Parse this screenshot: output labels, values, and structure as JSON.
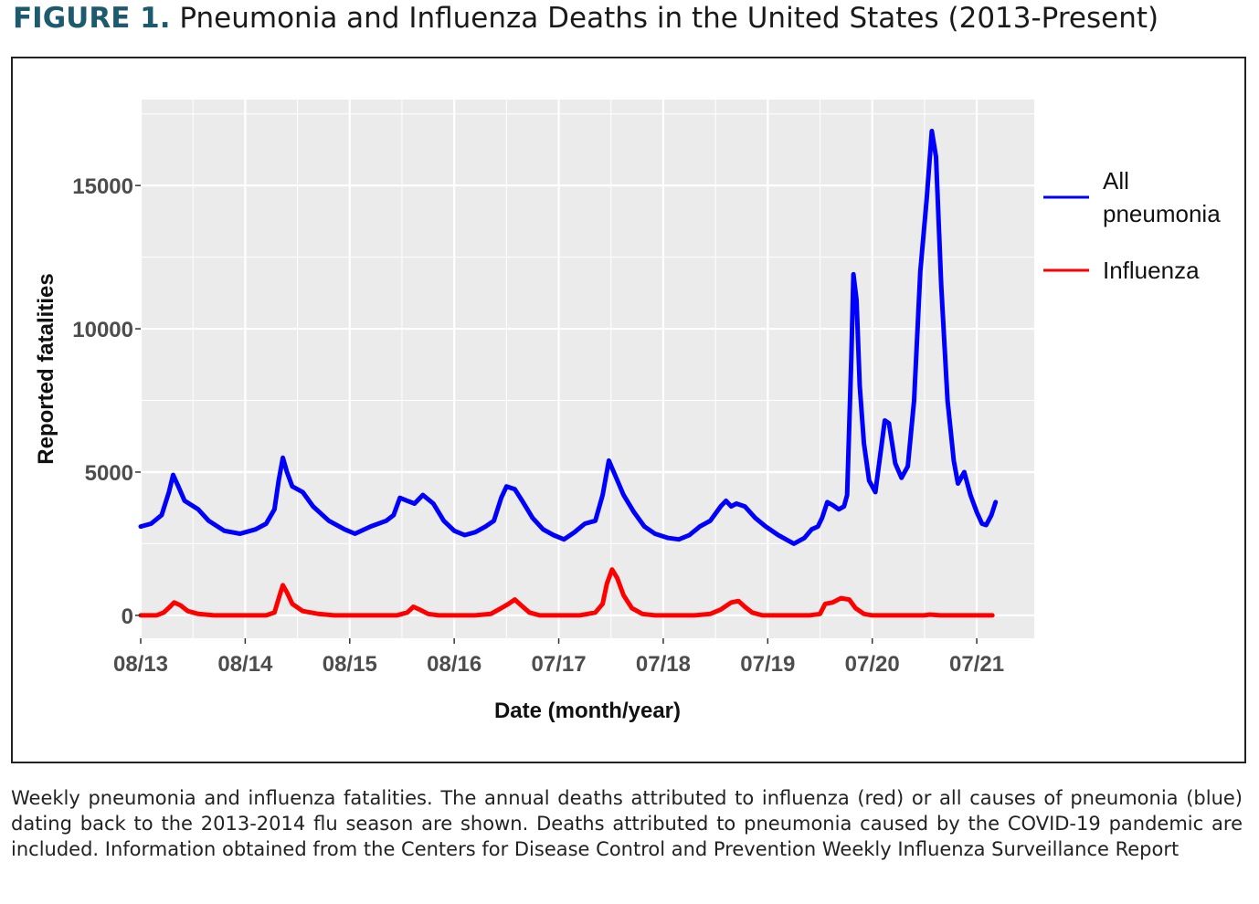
{
  "figure": {
    "label": "FIGURE 1.",
    "title": "Pneumonia and Influenza Deaths in the United States (2013-Present)",
    "caption": "Weekly pneumonia and influenza fatalities. The annual deaths attributed to influenza (red) or all causes of pneumonia (blue) dating back to the 2013-2014 flu season are shown. Deaths attributed to pneumonia caused by the COVID-19 pandemic are included. Information obtained from the Centers for Disease Control and Prevention Weekly Influenza Surveillance Report"
  },
  "colors": {
    "pneumonia": "#0000ff",
    "influenza": "#ff0000",
    "panel": "#ebebeb",
    "grid": "#ffffff",
    "title_label": "#1e5a6e"
  },
  "chart_data": {
    "type": "line",
    "xlabel": "Date (month/year)",
    "ylabel": "Reported fatalities",
    "xlim": [
      0,
      8.55
    ],
    "ylim": [
      -800,
      18000
    ],
    "x_ticks": [
      {
        "value": 0,
        "label": "08/13"
      },
      {
        "value": 1,
        "label": "08/14"
      },
      {
        "value": 2,
        "label": "08/15"
      },
      {
        "value": 3,
        "label": "08/16"
      },
      {
        "value": 4,
        "label": "07/17"
      },
      {
        "value": 5,
        "label": "07/18"
      },
      {
        "value": 6,
        "label": "07/19"
      },
      {
        "value": 7,
        "label": "07/20"
      },
      {
        "value": 8,
        "label": "07/21"
      }
    ],
    "y_ticks": [
      {
        "value": 0,
        "label": "0"
      },
      {
        "value": 5000,
        "label": "5000"
      },
      {
        "value": 10000,
        "label": "10000"
      },
      {
        "value": 15000,
        "label": "15000"
      }
    ],
    "legend": {
      "position": "right",
      "entries": [
        "All\npneumonia",
        "Influenza"
      ]
    },
    "series": [
      {
        "name": "All pneumonia",
        "color": "#0000ff",
        "points": [
          [
            0.0,
            3100
          ],
          [
            0.1,
            3200
          ],
          [
            0.2,
            3500
          ],
          [
            0.27,
            4300
          ],
          [
            0.31,
            4900
          ],
          [
            0.36,
            4500
          ],
          [
            0.42,
            4000
          ],
          [
            0.55,
            3700
          ],
          [
            0.65,
            3300
          ],
          [
            0.8,
            2950
          ],
          [
            0.95,
            2850
          ],
          [
            1.1,
            3000
          ],
          [
            1.2,
            3200
          ],
          [
            1.28,
            3700
          ],
          [
            1.32,
            4700
          ],
          [
            1.36,
            5500
          ],
          [
            1.4,
            5000
          ],
          [
            1.45,
            4500
          ],
          [
            1.55,
            4300
          ],
          [
            1.65,
            3800
          ],
          [
            1.8,
            3300
          ],
          [
            1.95,
            3000
          ],
          [
            2.05,
            2850
          ],
          [
            2.2,
            3100
          ],
          [
            2.35,
            3300
          ],
          [
            2.42,
            3500
          ],
          [
            2.48,
            4100
          ],
          [
            2.55,
            4000
          ],
          [
            2.62,
            3900
          ],
          [
            2.7,
            4200
          ],
          [
            2.8,
            3900
          ],
          [
            2.9,
            3300
          ],
          [
            3.0,
            2950
          ],
          [
            3.1,
            2800
          ],
          [
            3.2,
            2900
          ],
          [
            3.3,
            3100
          ],
          [
            3.38,
            3300
          ],
          [
            3.45,
            4100
          ],
          [
            3.5,
            4500
          ],
          [
            3.58,
            4400
          ],
          [
            3.65,
            4000
          ],
          [
            3.75,
            3400
          ],
          [
            3.85,
            3000
          ],
          [
            3.95,
            2800
          ],
          [
            4.05,
            2650
          ],
          [
            4.15,
            2900
          ],
          [
            4.25,
            3200
          ],
          [
            4.35,
            3300
          ],
          [
            4.42,
            4200
          ],
          [
            4.48,
            5400
          ],
          [
            4.55,
            4800
          ],
          [
            4.62,
            4200
          ],
          [
            4.72,
            3600
          ],
          [
            4.82,
            3100
          ],
          [
            4.92,
            2850
          ],
          [
            5.05,
            2700
          ],
          [
            5.15,
            2650
          ],
          [
            5.25,
            2800
          ],
          [
            5.35,
            3100
          ],
          [
            5.45,
            3300
          ],
          [
            5.55,
            3800
          ],
          [
            5.6,
            4000
          ],
          [
            5.65,
            3800
          ],
          [
            5.7,
            3900
          ],
          [
            5.78,
            3800
          ],
          [
            5.88,
            3400
          ],
          [
            5.98,
            3100
          ],
          [
            6.1,
            2800
          ],
          [
            6.2,
            2600
          ],
          [
            6.25,
            2500
          ],
          [
            6.35,
            2700
          ],
          [
            6.42,
            3000
          ],
          [
            6.48,
            3100
          ],
          [
            6.52,
            3400
          ],
          [
            6.57,
            3950
          ],
          [
            6.62,
            3850
          ],
          [
            6.68,
            3700
          ],
          [
            6.73,
            3800
          ],
          [
            6.76,
            4200
          ],
          [
            6.8,
            9000
          ],
          [
            6.82,
            11900
          ],
          [
            6.85,
            11000
          ],
          [
            6.88,
            8000
          ],
          [
            6.92,
            6000
          ],
          [
            6.97,
            4700
          ],
          [
            7.03,
            4300
          ],
          [
            7.08,
            5700
          ],
          [
            7.12,
            6800
          ],
          [
            7.16,
            6700
          ],
          [
            7.22,
            5300
          ],
          [
            7.28,
            4800
          ],
          [
            7.34,
            5200
          ],
          [
            7.4,
            7500
          ],
          [
            7.46,
            12000
          ],
          [
            7.52,
            14500
          ],
          [
            7.57,
            16900
          ],
          [
            7.61,
            16000
          ],
          [
            7.66,
            11500
          ],
          [
            7.72,
            7500
          ],
          [
            7.78,
            5400
          ],
          [
            7.82,
            4600
          ],
          [
            7.88,
            5000
          ],
          [
            7.94,
            4200
          ],
          [
            8.0,
            3600
          ],
          [
            8.05,
            3200
          ],
          [
            8.09,
            3150
          ],
          [
            8.14,
            3500
          ],
          [
            8.18,
            3950
          ]
        ]
      },
      {
        "name": "Influenza",
        "color": "#ff0000",
        "points": [
          [
            0.0,
            0
          ],
          [
            0.15,
            0
          ],
          [
            0.22,
            100
          ],
          [
            0.28,
            300
          ],
          [
            0.32,
            450
          ],
          [
            0.38,
            350
          ],
          [
            0.45,
            150
          ],
          [
            0.55,
            50
          ],
          [
            0.7,
            0
          ],
          [
            1.0,
            0
          ],
          [
            1.2,
            0
          ],
          [
            1.28,
            100
          ],
          [
            1.33,
            700
          ],
          [
            1.36,
            1050
          ],
          [
            1.4,
            800
          ],
          [
            1.45,
            400
          ],
          [
            1.55,
            150
          ],
          [
            1.7,
            50
          ],
          [
            1.85,
            0
          ],
          [
            2.2,
            0
          ],
          [
            2.45,
            0
          ],
          [
            2.55,
            100
          ],
          [
            2.61,
            300
          ],
          [
            2.67,
            200
          ],
          [
            2.75,
            50
          ],
          [
            2.85,
            0
          ],
          [
            3.2,
            0
          ],
          [
            3.35,
            50
          ],
          [
            3.45,
            250
          ],
          [
            3.52,
            400
          ],
          [
            3.58,
            550
          ],
          [
            3.64,
            350
          ],
          [
            3.72,
            100
          ],
          [
            3.82,
            0
          ],
          [
            4.2,
            0
          ],
          [
            4.35,
            100
          ],
          [
            4.42,
            400
          ],
          [
            4.46,
            1100
          ],
          [
            4.51,
            1600
          ],
          [
            4.56,
            1300
          ],
          [
            4.62,
            700
          ],
          [
            4.7,
            250
          ],
          [
            4.8,
            50
          ],
          [
            4.92,
            0
          ],
          [
            5.3,
            0
          ],
          [
            5.45,
            50
          ],
          [
            5.55,
            200
          ],
          [
            5.65,
            450
          ],
          [
            5.72,
            500
          ],
          [
            5.78,
            300
          ],
          [
            5.85,
            100
          ],
          [
            5.95,
            0
          ],
          [
            6.4,
            0
          ],
          [
            6.5,
            50
          ],
          [
            6.55,
            400
          ],
          [
            6.62,
            450
          ],
          [
            6.7,
            600
          ],
          [
            6.78,
            550
          ],
          [
            6.84,
            250
          ],
          [
            6.92,
            50
          ],
          [
            7.0,
            0
          ],
          [
            7.5,
            0
          ],
          [
            7.55,
            30
          ],
          [
            7.65,
            0
          ],
          [
            8.0,
            0
          ],
          [
            8.15,
            0
          ]
        ]
      }
    ]
  }
}
